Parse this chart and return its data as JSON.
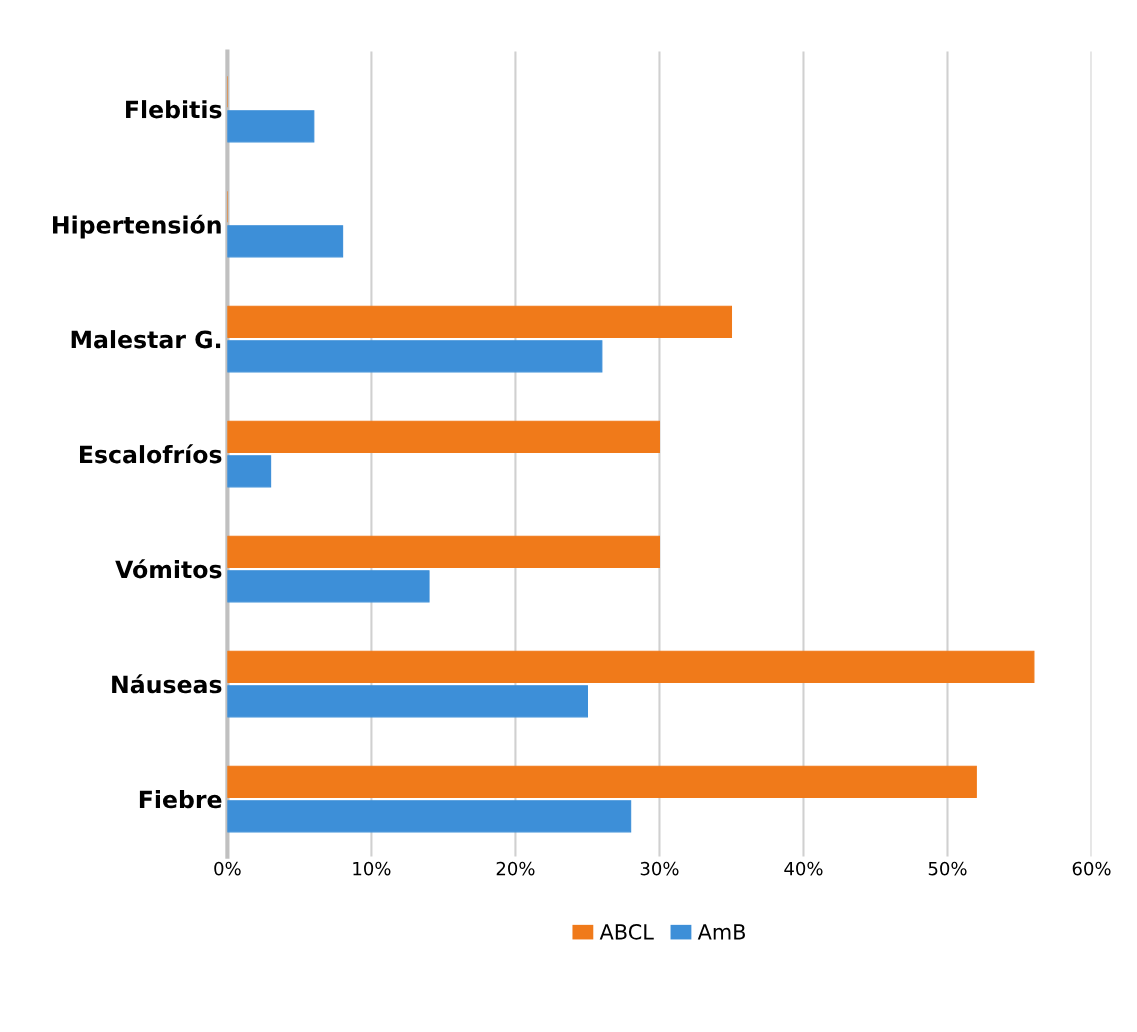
{
  "chart_data": {
    "type": "bar",
    "orientation": "horizontal",
    "categories": [
      "Flebitis",
      "Hipertensión",
      "Malestar G.",
      "Escalofríos",
      "Vómitos",
      "Náuseas",
      "Fiebre"
    ],
    "series": [
      {
        "name": "ABCL",
        "color": "#f07a1a",
        "values": [
          0,
          0,
          35,
          30,
          30,
          56,
          52
        ]
      },
      {
        "name": "AmB",
        "color": "#3d8fd8",
        "values": [
          6,
          8,
          26,
          3,
          14,
          25,
          28
        ]
      }
    ],
    "xlim": [
      0,
      60
    ],
    "xticks": [
      {
        "value": 0,
        "label": "0%"
      },
      {
        "value": 10,
        "label": "10%"
      },
      {
        "value": 20,
        "label": "20%"
      },
      {
        "value": 30,
        "label": "30%"
      },
      {
        "value": 40,
        "label": "40%"
      },
      {
        "value": 50,
        "label": "50%"
      },
      {
        "value": 60,
        "label": "60%"
      }
    ],
    "grid": "x",
    "legend": "bottom"
  }
}
